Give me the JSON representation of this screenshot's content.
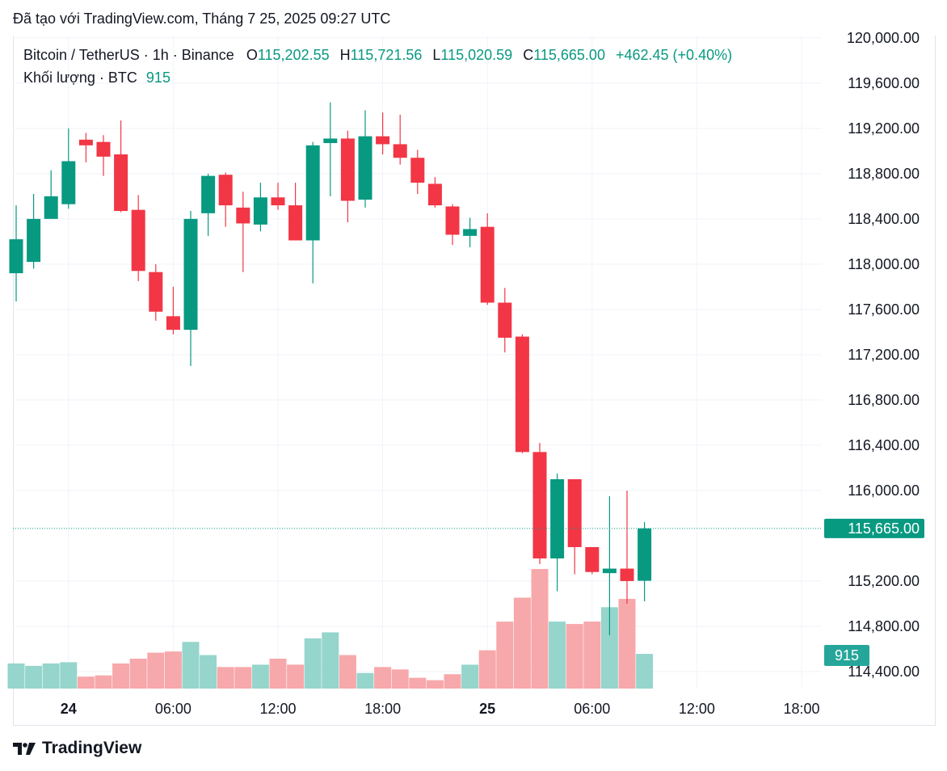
{
  "header": {
    "watermark_text": "Đã tạo với TradingView.com, Tháng 7 25, 2025 09:27 UTC"
  },
  "legend": {
    "symbol": "Bitcoin / TetherUS · 1h · Binance",
    "o_label": "O",
    "o_value": "115,202.55",
    "h_label": "H",
    "h_value": "115,721.56",
    "l_label": "L",
    "l_value": "115,020.59",
    "c_label": "C",
    "c_value": "115,665.00",
    "change": "+462.45 (+0.40%)",
    "volume_label": "Khối lượng · BTC",
    "volume_value": "915"
  },
  "footer": {
    "brand": "TradingView"
  },
  "colors": {
    "up": "#089981",
    "down": "#f23645",
    "vol_up": "#95d5cc",
    "vol_down": "#f7a8ab",
    "grid": "#f0f3fa"
  },
  "chart_data": {
    "type": "candlestick",
    "symbol": "Bitcoin / TetherUS",
    "interval": "1h",
    "exchange": "Binance",
    "y_ticks": [
      "120,000.00",
      "119,600.00",
      "119,200.00",
      "118,800.00",
      "118,400.00",
      "118,000.00",
      "117,600.00",
      "117,200.00",
      "116,800.00",
      "116,400.00",
      "116,000.00",
      "115,200.00",
      "114,800.00",
      "114,400.00"
    ],
    "y_tick_values": [
      120000,
      119600,
      119200,
      118800,
      118400,
      118000,
      117600,
      117200,
      116800,
      116400,
      116000,
      115200,
      114800,
      114400
    ],
    "price_range": [
      114250,
      120020
    ],
    "x_labels": [
      {
        "label": "24",
        "bar": 3,
        "bold": true
      },
      {
        "label": "06:00",
        "bar": 9
      },
      {
        "label": "12:00",
        "bar": 15
      },
      {
        "label": "18:00",
        "bar": 21
      },
      {
        "label": "25",
        "bar": 27,
        "bold": true
      },
      {
        "label": "06:00",
        "bar": 33
      },
      {
        "label": "12:00",
        "bar": 39
      },
      {
        "label": "18:00",
        "bar": 45
      }
    ],
    "last_price_label": "115,665.00",
    "last_price": 115665,
    "last_volume_label": "915",
    "candles": [
      {
        "o": 117920,
        "h": 118520,
        "l": 117670,
        "c": 118220,
        "v": "vol"
      },
      {
        "o": 118020,
        "h": 118620,
        "l": 117960,
        "c": 118400,
        "v": "vol"
      },
      {
        "o": 118400,
        "h": 118830,
        "l": 118420,
        "c": 118600,
        "v": "vol"
      },
      {
        "o": 118530,
        "h": 119200,
        "l": 118490,
        "c": 118910,
        "v": "vol"
      },
      {
        "o": 119100,
        "h": 119160,
        "l": 118900,
        "c": 119050,
        "v": "vol"
      },
      {
        "o": 119080,
        "h": 119140,
        "l": 118780,
        "c": 118950,
        "v": "vol"
      },
      {
        "o": 118970,
        "h": 119270,
        "l": 118460,
        "c": 118470,
        "v": "vol"
      },
      {
        "o": 118480,
        "h": 118610,
        "l": 117850,
        "c": 117940,
        "v": "vol"
      },
      {
        "o": 117930,
        "h": 118000,
        "l": 117500,
        "c": 117580,
        "v": "vol"
      },
      {
        "o": 117540,
        "h": 117800,
        "l": 117380,
        "c": 117420,
        "v": "vol"
      },
      {
        "o": 117420,
        "h": 118470,
        "l": 117100,
        "c": 118400,
        "v": "vol"
      },
      {
        "o": 118450,
        "h": 118800,
        "l": 118250,
        "c": 118780,
        "v": "vol"
      },
      {
        "o": 118790,
        "h": 118810,
        "l": 118330,
        "c": 118520,
        "v": "vol"
      },
      {
        "o": 118500,
        "h": 118640,
        "l": 117930,
        "c": 118360,
        "v": "vol"
      },
      {
        "o": 118350,
        "h": 118720,
        "l": 118290,
        "c": 118590,
        "v": "vol"
      },
      {
        "o": 118590,
        "h": 118720,
        "l": 118480,
        "c": 118520,
        "v": "vol"
      },
      {
        "o": 118520,
        "h": 118720,
        "l": 118210,
        "c": 118210,
        "v": "vol"
      },
      {
        "o": 118210,
        "h": 119080,
        "l": 117830,
        "c": 119050,
        "v": "vol"
      },
      {
        "o": 119070,
        "h": 119430,
        "l": 118600,
        "c": 119110,
        "v": "vol"
      },
      {
        "o": 119110,
        "h": 119180,
        "l": 118370,
        "c": 118560,
        "v": "vol"
      },
      {
        "o": 118570,
        "h": 119360,
        "l": 118500,
        "c": 119130,
        "v": "vol"
      },
      {
        "o": 119130,
        "h": 119340,
        "l": 118970,
        "c": 119060,
        "v": "vol"
      },
      {
        "o": 119060,
        "h": 119320,
        "l": 118880,
        "c": 118940,
        "v": "vol"
      },
      {
        "o": 118940,
        "h": 119010,
        "l": 118620,
        "c": 118720,
        "v": "vol"
      },
      {
        "o": 118710,
        "h": 118770,
        "l": 118500,
        "c": 118520,
        "v": "vol"
      },
      {
        "o": 118510,
        "h": 118530,
        "l": 118170,
        "c": 118260,
        "v": "vol"
      },
      {
        "o": 118250,
        "h": 118410,
        "l": 118150,
        "c": 118310,
        "v": "vol"
      },
      {
        "o": 118330,
        "h": 118450,
        "l": 117640,
        "c": 117660,
        "v": "vol"
      },
      {
        "o": 117660,
        "h": 117790,
        "l": 117220,
        "c": 117350,
        "v": "vol"
      },
      {
        "o": 117360,
        "h": 117380,
        "l": 116330,
        "c": 116340,
        "v": "vol"
      },
      {
        "o": 116340,
        "h": 116420,
        "l": 115350,
        "c": 115400,
        "v": "vol"
      },
      {
        "o": 115400,
        "h": 116150,
        "l": 115110,
        "c": 116100,
        "v": "vol"
      },
      {
        "o": 116100,
        "h": 116100,
        "l": 115260,
        "c": 115500,
        "v": "vol"
      },
      {
        "o": 115500,
        "h": 115500,
        "l": 115260,
        "c": 115280,
        "v": "vol"
      },
      {
        "o": 115270,
        "h": 115950,
        "l": 114720,
        "c": 115310,
        "v": "vol"
      },
      {
        "o": 115310,
        "h": 116000,
        "l": 115000,
        "c": 115200,
        "v": "vol"
      },
      {
        "o": 115202.55,
        "h": 115721.56,
        "l": 115020.59,
        "c": 115665.0,
        "v": "vol"
      }
    ],
    "volumes": [
      0.21,
      0.19,
      0.21,
      0.22,
      0.1,
      0.11,
      0.21,
      0.25,
      0.3,
      0.31,
      0.39,
      0.28,
      0.18,
      0.18,
      0.2,
      0.25,
      0.2,
      0.42,
      0.47,
      0.28,
      0.13,
      0.18,
      0.16,
      0.09,
      0.07,
      0.12,
      0.2,
      0.32,
      0.56,
      0.76,
      1.0,
      0.56,
      0.54,
      0.56,
      0.68,
      0.75,
      0.29
    ],
    "volume_max_hint": "relative"
  }
}
